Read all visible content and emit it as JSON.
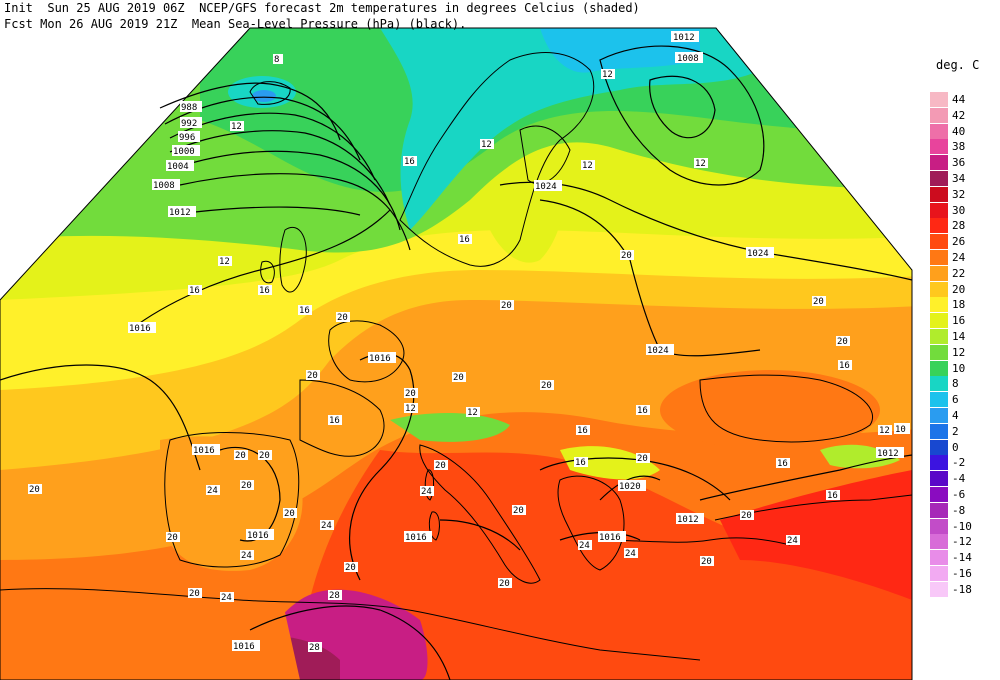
{
  "header": {
    "line1": "Init  Sun 25 AUG 2019 06Z  NCEP/GFS forecast 2m temperatures in degrees Celcius (shaded)",
    "line2": "Fcst Mon 26 AUG 2019 21Z  Mean Sea-Level Pressure (hPa) (black)."
  },
  "legend": {
    "title": "deg. C",
    "entries": [
      {
        "label": "44",
        "color": "#f7b8c4"
      },
      {
        "label": "42",
        "color": "#f39ab4"
      },
      {
        "label": "40",
        "color": "#ee6fa8"
      },
      {
        "label": "38",
        "color": "#e8449c"
      },
      {
        "label": "36",
        "color": "#c81e84"
      },
      {
        "label": "34",
        "color": "#a01c58"
      },
      {
        "label": "32",
        "color": "#cc0c1e"
      },
      {
        "label": "30",
        "color": "#e8141c"
      },
      {
        "label": "28",
        "color": "#ff2814"
      },
      {
        "label": "26",
        "color": "#ff4a10"
      },
      {
        "label": "24",
        "color": "#ff7814"
      },
      {
        "label": "22",
        "color": "#ffa01c"
      },
      {
        "label": "20",
        "color": "#ffc81e"
      },
      {
        "label": "18",
        "color": "#fff02a"
      },
      {
        "label": "16",
        "color": "#e4f21a"
      },
      {
        "label": "14",
        "color": "#b0ec2c"
      },
      {
        "label": "12",
        "color": "#72dc3c"
      },
      {
        "label": "10",
        "color": "#38d25a"
      },
      {
        "label": "8",
        "color": "#18d6c4"
      },
      {
        "label": "6",
        "color": "#1cc2ec"
      },
      {
        "label": "4",
        "color": "#2a9cf0"
      },
      {
        "label": "2",
        "color": "#1c74e8"
      },
      {
        "label": "0",
        "color": "#1848d0"
      },
      {
        "label": "-2",
        "color": "#3c14e0"
      },
      {
        "label": "-4",
        "color": "#5a08c8"
      },
      {
        "label": "-6",
        "color": "#8a0cc0"
      },
      {
        "label": "-8",
        "color": "#a628b8"
      },
      {
        "label": "-10",
        "color": "#c24cc8"
      },
      {
        "label": "-12",
        "color": "#d86cd8"
      },
      {
        "label": "-14",
        "color": "#e88ce8"
      },
      {
        "label": "-16",
        "color": "#f2aaf2"
      },
      {
        "label": "-18",
        "color": "#f8c8f8"
      }
    ]
  },
  "isobar_labels": {
    "i1012_ne": "1012",
    "i1008_ne": "1008",
    "i988": "988",
    "i992": "992",
    "i996": "996",
    "i1000": "1000",
    "i1004": "1004",
    "i1008": "1008",
    "i1012": "1012",
    "i1024_baltic": "1024",
    "i1024_east": "1024",
    "i1024_poland": "1024",
    "i1016_atl": "1016",
    "i1016_fr": "1016",
    "i1016_ib": "1016",
    "i1016_iw": "1016",
    "i1016_med": "1016",
    "i1016_gr": "1016",
    "i1016_af": "1016",
    "i1020_bal": "1020",
    "i1012_tr": "1012",
    "i1012_bl": "1012",
    "i10_e": "10"
  },
  "temp_labels": {
    "t1": "8",
    "t2": "12",
    "t3": "12",
    "t4": "16",
    "t5": "12",
    "t6": "12",
    "t7": "12",
    "t8": "16",
    "t9": "12",
    "t10": "16",
    "t11": "16",
    "t12": "16",
    "t13": "20",
    "t14": "20",
    "t15": "20",
    "t16": "20",
    "t17": "20",
    "t18": "20",
    "t19": "16",
    "t20": "20",
    "t21": "20",
    "t22": "20",
    "t23": "16",
    "t24": "12",
    "t25": "12",
    "t26": "20",
    "t27": "16",
    "t28": "20",
    "t29": "20",
    "t30": "20",
    "t31": "24",
    "t32": "20",
    "t33": "20",
    "t34": "24",
    "t35": "20",
    "t36": "20",
    "t37": "16",
    "t38": "20",
    "t39": "24",
    "t40": "20",
    "t41": "24",
    "t42": "16",
    "t43": "16",
    "t44": "12",
    "t45": "20",
    "t46": "24",
    "t47": "28",
    "t48": "20",
    "t49": "16",
    "t50": "20",
    "t51": "24",
    "t52": "20",
    "t53": "24",
    "t54": "24",
    "t55": "28"
  }
}
